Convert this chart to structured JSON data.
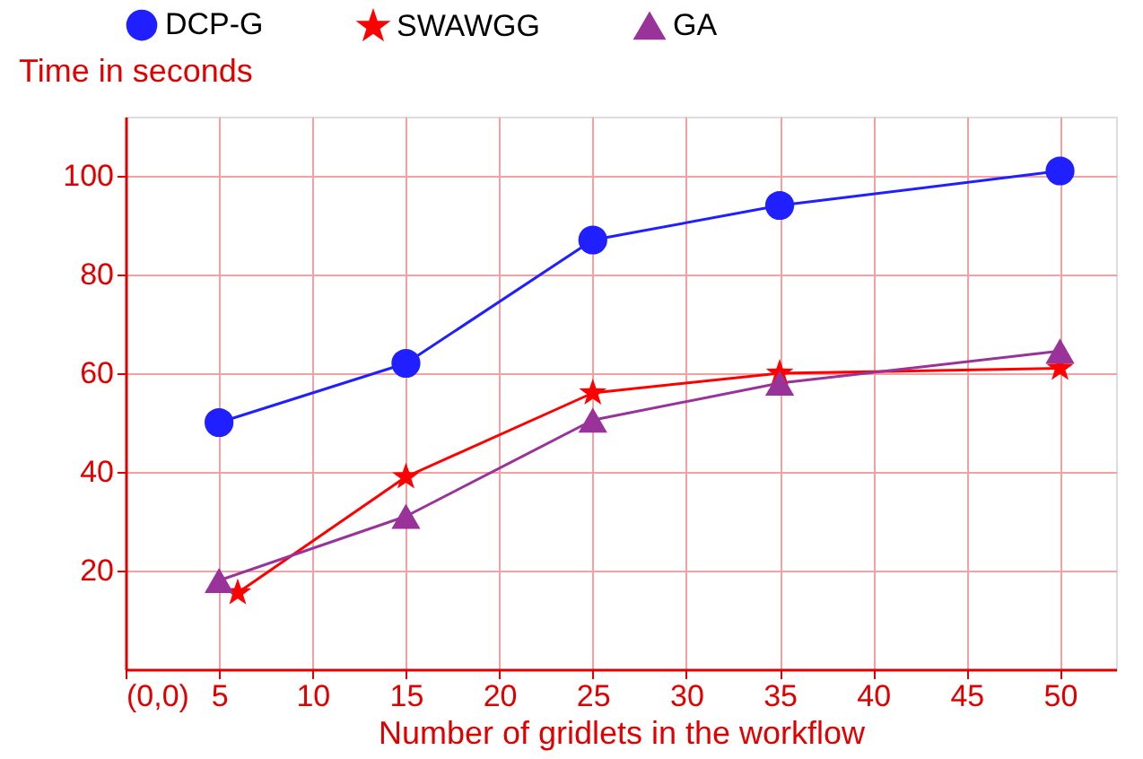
{
  "chart_data": {
    "type": "line",
    "xlabel": "Number of gridlets in the workflow",
    "ylabel": "Time in seconds",
    "xlim": [
      0,
      53
    ],
    "ylim": [
      0,
      112
    ],
    "xticks": [
      {
        "value": 0,
        "label": "(0,0)"
      },
      5,
      10,
      15,
      20,
      25,
      30,
      35,
      40,
      45,
      50
    ],
    "yticks": [
      20,
      40,
      60,
      80,
      100
    ],
    "grid": true,
    "legend": "top",
    "line_style": "solid",
    "series": [
      {
        "name": "DCP-G",
        "color": "#1f1fff",
        "marker": "circle",
        "x": [
          5,
          15,
          25,
          35,
          50
        ],
        "values": [
          50,
          62,
          87,
          94,
          101
        ]
      },
      {
        "name": "SWAWGG",
        "color": "#ff0000",
        "marker": "star",
        "x": [
          6,
          15,
          25,
          35,
          50
        ],
        "values": [
          15.5,
          39,
          56,
          60,
          61
        ]
      },
      {
        "name": "GA",
        "color": "#993399",
        "marker": "triangle",
        "x": [
          5,
          15,
          25,
          35,
          50
        ],
        "values": [
          18,
          31,
          50.5,
          58,
          64.5
        ]
      }
    ]
  }
}
